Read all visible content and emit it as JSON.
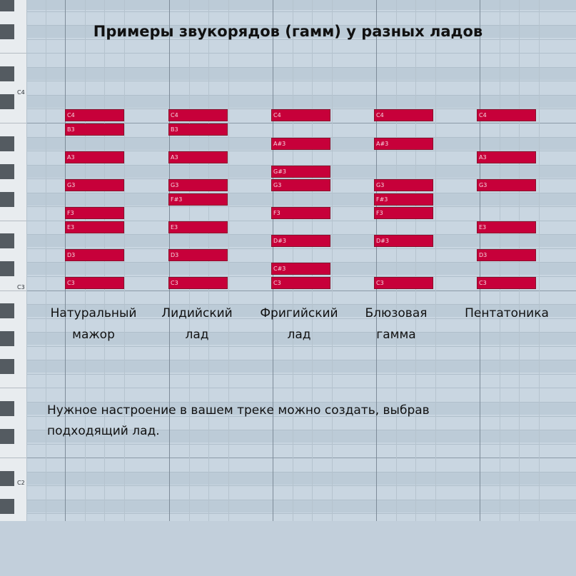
{
  "title": "Примеры звукорядов (гамм) у разных ладов",
  "keyboard_labels": {
    "c4": "C4",
    "c3": "C3",
    "c2": "C2"
  },
  "scales": [
    {
      "name_line1": "Натуральный",
      "name_line2": "мажор",
      "notes": [
        "C4",
        "B3",
        "A3",
        "G3",
        "F3",
        "E3",
        "D3",
        "C3"
      ]
    },
    {
      "name_line1": "Лидийский",
      "name_line2": "лад",
      "notes": [
        "C4",
        "B3",
        "A3",
        "G3",
        "F#3",
        "E3",
        "D3",
        "C3"
      ]
    },
    {
      "name_line1": "Фригийский",
      "name_line2": "лад",
      "notes": [
        "C4",
        "A#3",
        "G#3",
        "G3",
        "F3",
        "D#3",
        "C#3",
        "C3"
      ]
    },
    {
      "name_line1": "Блюзовая",
      "name_line2": "гамма",
      "notes": [
        "C4",
        "A#3",
        "G3",
        "F#3",
        "F3",
        "D#3",
        "C3"
      ]
    },
    {
      "name_line1": "Пентатоника",
      "name_line2": "",
      "notes": [
        "C4",
        "A3",
        "G3",
        "E3",
        "D3",
        "C3"
      ]
    }
  ],
  "caption_line1": "Нужное настроение в вашем треке можно создать, выбрав",
  "caption_line2": "подходящий лад.",
  "colors": {
    "note_fill": "#c7003a",
    "grid_bg": "#c9d6e1",
    "keyboard_bg": "#e8ecef"
  }
}
